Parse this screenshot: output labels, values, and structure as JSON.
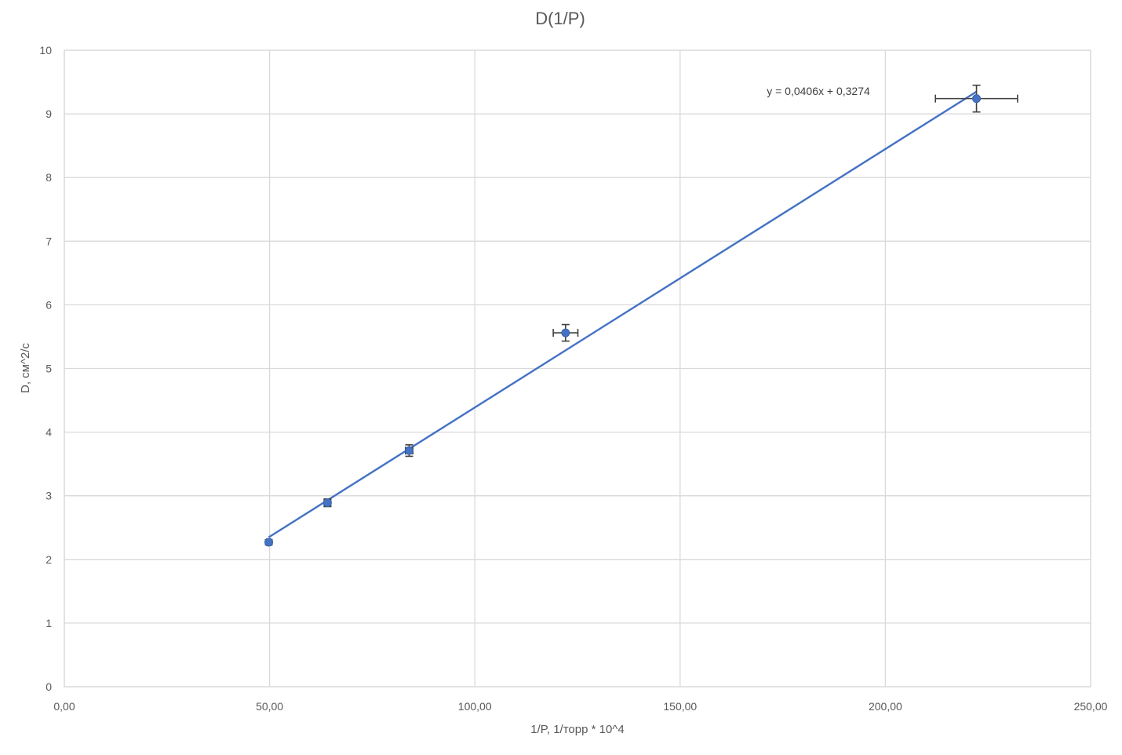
{
  "chart_data": {
    "type": "scatter",
    "title": "D(1/P)",
    "xlabel": "1/P,  1/торр * 10^4",
    "ylabel": "D, см^2/с",
    "xlim": [
      0,
      250
    ],
    "ylim": [
      0,
      10
    ],
    "x_ticks": [
      0,
      50,
      100,
      150,
      200,
      250
    ],
    "x_tick_labels": [
      "0,00",
      "50,00",
      "100,00",
      "150,00",
      "200,00",
      "250,00"
    ],
    "y_ticks": [
      0,
      1,
      2,
      3,
      4,
      5,
      6,
      7,
      8,
      9,
      10
    ],
    "y_tick_labels": [
      "0",
      "1",
      "2",
      "3",
      "4",
      "5",
      "6",
      "7",
      "8",
      "9",
      "10"
    ],
    "grid": true,
    "legend": "none",
    "colors": {
      "series": "#4472c4",
      "error_bars": "#404040",
      "grid": "#d9d9d9"
    },
    "series": [
      {
        "points": [
          {
            "x": 49.8,
            "y": 2.27,
            "xerr": 0.5,
            "yerr": 0.04
          },
          {
            "x": 64.1,
            "y": 2.89,
            "xerr": 0.8,
            "yerr": 0.06
          },
          {
            "x": 84.0,
            "y": 3.71,
            "xerr": 0.9,
            "yerr": 0.09
          },
          {
            "x": 122.1,
            "y": 5.56,
            "xerr": 3.0,
            "yerr": 0.13
          },
          {
            "x": 222.2,
            "y": 9.24,
            "xerr": 10.0,
            "yerr": 0.21
          }
        ]
      }
    ],
    "trendline": {
      "type": "linear",
      "slope": 0.0406,
      "intercept": 0.3274,
      "x_range": [
        49.8,
        222.2
      ],
      "equation_label": "y = 0,0406x + 0,3274"
    }
  }
}
